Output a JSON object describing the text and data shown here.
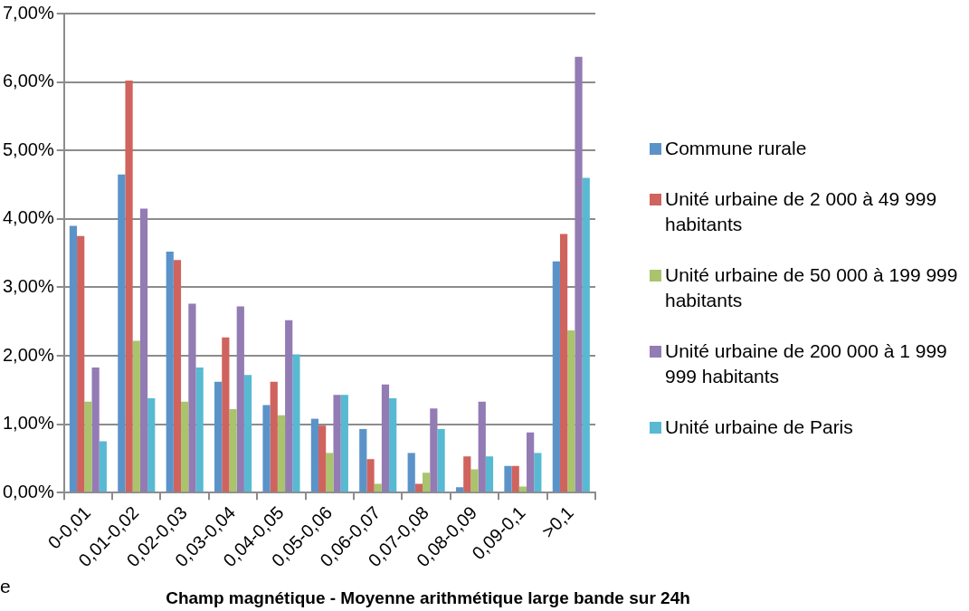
{
  "chart_data": {
    "type": "bar",
    "xlabel": "Champ magnétique - Moyenne arithmétique large bande sur 24h",
    "categories": [
      "0-0,01",
      "0,01-0,02",
      "0,02-0,03",
      "0,03-0,04",
      "0,04-0,05",
      "0,05-0,06",
      "0,06-0,07",
      "0,07-0,08",
      "0,08-0,09",
      "0,09-0,1",
      ">0,1"
    ],
    "series": [
      {
        "name": "Commune rurale",
        "color": "#5b93c9",
        "values": [
          3.9,
          4.65,
          3.52,
          1.62,
          1.28,
          1.08,
          0.93,
          0.58,
          0.08,
          0.39,
          3.38
        ]
      },
      {
        "name": "Unité urbaine de 2 000 à 49 999 habitants",
        "color": "#d0635d",
        "values": [
          3.75,
          6.02,
          3.4,
          2.27,
          1.62,
          0.98,
          0.49,
          0.13,
          0.53,
          0.39,
          3.78
        ]
      },
      {
        "name": "Unité urbaine de 50 000 à 199 999 habitants",
        "color": "#a9c46c",
        "values": [
          1.33,
          2.22,
          1.33,
          1.22,
          1.13,
          0.58,
          0.13,
          0.29,
          0.34,
          0.09,
          2.37
        ]
      },
      {
        "name": "Unité urbaine de 200 000 à 1 999 999 habitants",
        "color": "#937bb4",
        "values": [
          1.83,
          4.15,
          2.76,
          2.72,
          2.52,
          1.43,
          1.58,
          1.23,
          1.33,
          0.88,
          6.37
        ]
      },
      {
        "name": "Unité urbaine de Paris",
        "color": "#58b9d2",
        "values": [
          0.75,
          1.38,
          1.83,
          1.72,
          2.02,
          1.43,
          1.38,
          0.93,
          0.53,
          0.58,
          4.6
        ]
      }
    ],
    "ylim": [
      0,
      7
    ],
    "yticks": [
      {
        "value": 0,
        "label": "0,00%"
      },
      {
        "value": 1,
        "label": "1,00%"
      },
      {
        "value": 2,
        "label": "2,00%"
      },
      {
        "value": 3,
        "label": "3,00%"
      },
      {
        "value": 4,
        "label": "4,00%"
      },
      {
        "value": 5,
        "label": "5,00%"
      },
      {
        "value": 6,
        "label": "6,00%"
      },
      {
        "value": 7,
        "label": "7,00%"
      }
    ],
    "grid": "y",
    "legend": "right",
    "annotations": [
      "e"
    ]
  }
}
